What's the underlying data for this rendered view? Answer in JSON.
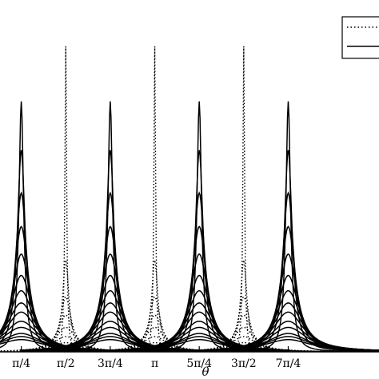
{
  "chart_data": {
    "type": "line",
    "title": "",
    "xlabel": "θ",
    "ylabel": "",
    "xlim": [
      0.41,
      7.1
    ],
    "ylim": [
      0,
      1.0
    ],
    "x_tick_values": [
      0.7854,
      1.5708,
      2.3562,
      3.1416,
      3.927,
      4.7124,
      5.4978
    ],
    "x_tick_labels": [
      "π/4",
      "π/2",
      "3π/4",
      "π",
      "5π/4",
      "3π/2",
      "7π/4"
    ],
    "grid": false,
    "legend": {
      "placement": "top-right",
      "entries": [
        {
          "name": "",
          "style": "dotted"
        },
        {
          "name": "",
          "style": "solid"
        }
      ]
    },
    "series": [
      {
        "name": "",
        "style": "solid",
        "peak_centers": [
          0.7854,
          2.3562,
          3.927,
          5.4978
        ],
        "curve_family_peaks": [
          0.82,
          0.66,
          0.52,
          0.41,
          0.32,
          0.25,
          0.2,
          0.16,
          0.13,
          0.1,
          0.08,
          0.06,
          0.05,
          0.04
        ]
      },
      {
        "name": "",
        "style": "dotted",
        "peak_centers": [
          1.5708,
          3.1416,
          4.7124
        ],
        "curve_family_peaks": [
          1.0,
          0.3,
          0.18,
          0.12,
          0.08,
          0.05,
          0.03
        ]
      }
    ]
  }
}
